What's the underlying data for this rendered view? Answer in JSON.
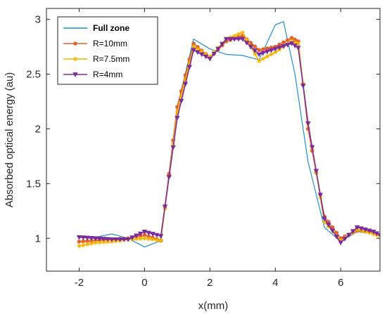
{
  "chart_data": {
    "type": "line",
    "title": "",
    "xlabel": "x(mm)",
    "ylabel": "Absorbed optical energy (au)",
    "xlim": [
      -3,
      7.2
    ],
    "ylim": [
      0.7,
      3.1
    ],
    "xticks": [
      -2,
      0,
      2,
      4,
      6
    ],
    "yticks": [
      1,
      1.5,
      2,
      2.5,
      3
    ],
    "xtick_labels": [
      "-2",
      "0",
      "2",
      "4",
      "6"
    ],
    "ytick_labels": [
      "1",
      "1.5",
      "2",
      "2.5",
      "3"
    ],
    "grid": false,
    "legend_position": "top-left",
    "series": [
      {
        "name": "Full zone",
        "color": "#1f8fd6",
        "marker": "none",
        "x": [
          -2,
          -1.5,
          -1,
          -0.5,
          0,
          0.5,
          1,
          1.5,
          2,
          2.5,
          3,
          3.5,
          4,
          4.25,
          4.6,
          5,
          5.5,
          6,
          6.5,
          7,
          7.2
        ],
        "y": [
          1.01,
          1.01,
          1.04,
          1.0,
          0.92,
          0.98,
          2.2,
          2.82,
          2.73,
          2.68,
          2.67,
          2.63,
          2.95,
          2.98,
          2.5,
          1.7,
          1.1,
          0.97,
          1.06,
          1.05,
          1.03
        ]
      },
      {
        "name": "R=10mm",
        "color": "#e2622a",
        "marker": "dot",
        "x": [
          -2,
          -1.5,
          -1,
          -0.5,
          0,
          0.5,
          1,
          1.5,
          2,
          2.5,
          3,
          3.5,
          4,
          4.5,
          4.7,
          5,
          5.5,
          6,
          6.5,
          7,
          7.2
        ],
        "y": [
          0.97,
          0.98,
          0.99,
          1.0,
          1.03,
          0.98,
          2.2,
          2.78,
          2.65,
          2.8,
          2.85,
          2.72,
          2.75,
          2.83,
          2.8,
          2.0,
          1.2,
          1.0,
          1.07,
          1.06,
          1.03
        ]
      },
      {
        "name": "R=7.5mm",
        "color": "#f4b400",
        "marker": "star",
        "x": [
          -2,
          -1.5,
          -1,
          -0.5,
          0,
          0.5,
          1,
          1.5,
          2,
          2.5,
          3,
          3.5,
          4,
          4.5,
          4.7,
          5,
          5.5,
          6,
          6.5,
          7,
          7.2
        ],
        "y": [
          0.93,
          0.96,
          0.97,
          0.99,
          1.0,
          0.98,
          2.15,
          2.75,
          2.66,
          2.82,
          2.88,
          2.62,
          2.7,
          2.8,
          2.78,
          2.05,
          1.15,
          0.98,
          1.08,
          1.04,
          1.02
        ]
      },
      {
        "name": "R=4mm",
        "color": "#7a2a9c",
        "marker": "triangle-down",
        "x": [
          -2,
          -1.5,
          -1,
          -0.5,
          0,
          0.5,
          1,
          1.5,
          2,
          2.5,
          3,
          3.5,
          4,
          4.5,
          4.7,
          5,
          5.5,
          6,
          6.5,
          7,
          7.2
        ],
        "y": [
          1.01,
          1.0,
          0.99,
          0.99,
          1.06,
          1.02,
          2.1,
          2.72,
          2.64,
          2.82,
          2.82,
          2.68,
          2.73,
          2.78,
          2.74,
          2.05,
          1.18,
          0.96,
          1.1,
          1.06,
          1.03
        ]
      }
    ]
  }
}
